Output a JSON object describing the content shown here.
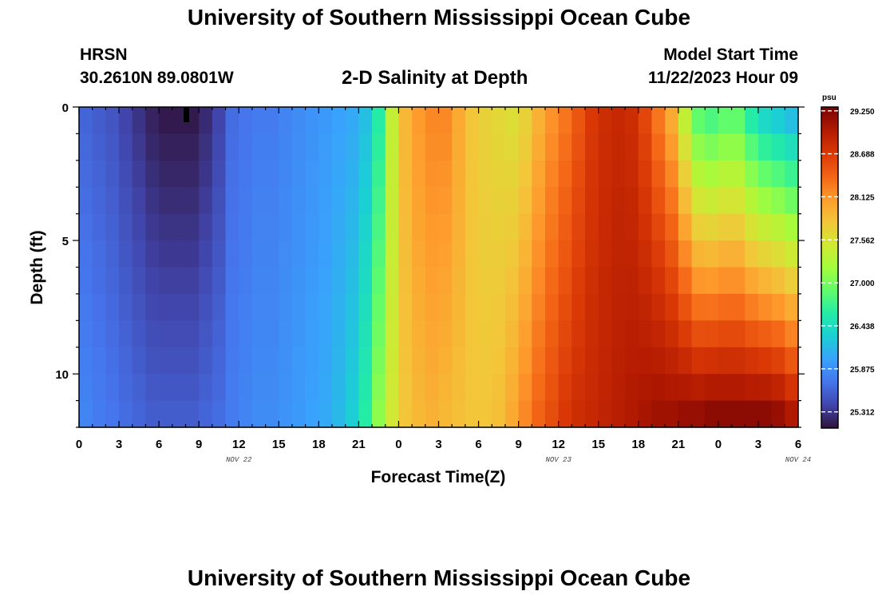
{
  "titles": {
    "top": "University of Southern Mississippi Ocean Cube",
    "bottom": "University of Southern Mississippi Ocean Cube"
  },
  "header": {
    "station": "HRSN",
    "coords": "30.2610N  89.0801W",
    "subtitle": "2-D Salinity at Depth",
    "model_label": "Model Start Time",
    "model_time": "11/22/2023 Hour 09"
  },
  "chart_data": {
    "type": "heatmap",
    "title": "2-D Salinity at Depth",
    "xlabel": "Forecast Time(Z)",
    "ylabel": "Depth (ft)",
    "x_tick_labels": [
      "0",
      "3",
      "6",
      "9",
      "12",
      "15",
      "18",
      "21",
      "0",
      "3",
      "6",
      "9",
      "12",
      "15",
      "18",
      "21",
      "0",
      "3",
      "6"
    ],
    "date_labels": [
      {
        "label": "NOV 22",
        "hour": 12
      },
      {
        "label": "NOV 23",
        "hour": 36
      },
      {
        "label": "NOV 24",
        "hour": 54
      }
    ],
    "xlim_hours": [
      0,
      54
    ],
    "ylim_ft": [
      0,
      12
    ],
    "y_major_ticks": [
      0,
      5,
      10
    ],
    "y_tick_labels": [
      "0",
      "5",
      "10"
    ],
    "colorbar": {
      "unit": "psu",
      "min": 25.1,
      "max": 29.3,
      "labels": [
        "29.250",
        "28.688",
        "28.125",
        "27.562",
        "27.000",
        "26.438",
        "25.875",
        "25.312"
      ],
      "label_values": [
        29.25,
        28.688,
        28.125,
        27.562,
        27.0,
        26.438,
        25.875,
        25.312
      ]
    },
    "colormap": [
      "#30123b",
      "#4145ab",
      "#4675ed",
      "#39a2fc",
      "#1bcfd4",
      "#24eca6",
      "#61fc6c",
      "#a4fc3b",
      "#d1e834",
      "#f3c63a",
      "#fe9b2d",
      "#f36315",
      "#d93806",
      "#b11901",
      "#7a0403"
    ],
    "depth_rows_ft": [
      0.5,
      1.5,
      2.5,
      3.5,
      4.5,
      5.5,
      6.5,
      7.5,
      8.5,
      9.5,
      10.5,
      11.5
    ],
    "column_step_hours": 1,
    "surface_salinity_by_hour": [
      25.6,
      25.55,
      25.5,
      25.4,
      25.3,
      25.2,
      25.15,
      25.15,
      25.15,
      25.25,
      25.4,
      25.65,
      25.7,
      25.75,
      25.75,
      25.8,
      25.85,
      25.9,
      25.95,
      26.0,
      26.05,
      26.2,
      26.6,
      27.4,
      27.9,
      28.1,
      28.2,
      28.2,
      28.0,
      27.8,
      27.7,
      27.65,
      27.6,
      27.7,
      27.95,
      28.15,
      28.3,
      28.5,
      28.7,
      28.8,
      28.85,
      28.8,
      28.6,
      28.3,
      28.0,
      27.4,
      26.9,
      26.8,
      26.9,
      26.9,
      26.6,
      26.4,
      26.3,
      26.2
    ],
    "bottom_salinity_by_hour": [
      25.8,
      25.75,
      25.7,
      25.65,
      25.6,
      25.55,
      25.55,
      25.55,
      25.55,
      25.6,
      25.65,
      25.75,
      25.8,
      25.85,
      25.85,
      25.9,
      25.95,
      26.0,
      26.05,
      26.15,
      26.3,
      26.6,
      27.1,
      27.5,
      27.8,
      27.9,
      27.95,
      27.9,
      27.85,
      27.8,
      27.8,
      27.85,
      28.0,
      28.2,
      28.4,
      28.55,
      28.7,
      28.8,
      28.85,
      28.9,
      28.95,
      29.0,
      29.05,
      29.1,
      29.1,
      29.15,
      29.15,
      29.2,
      29.2,
      29.2,
      29.2,
      29.2,
      29.15,
      29.0
    ]
  }
}
